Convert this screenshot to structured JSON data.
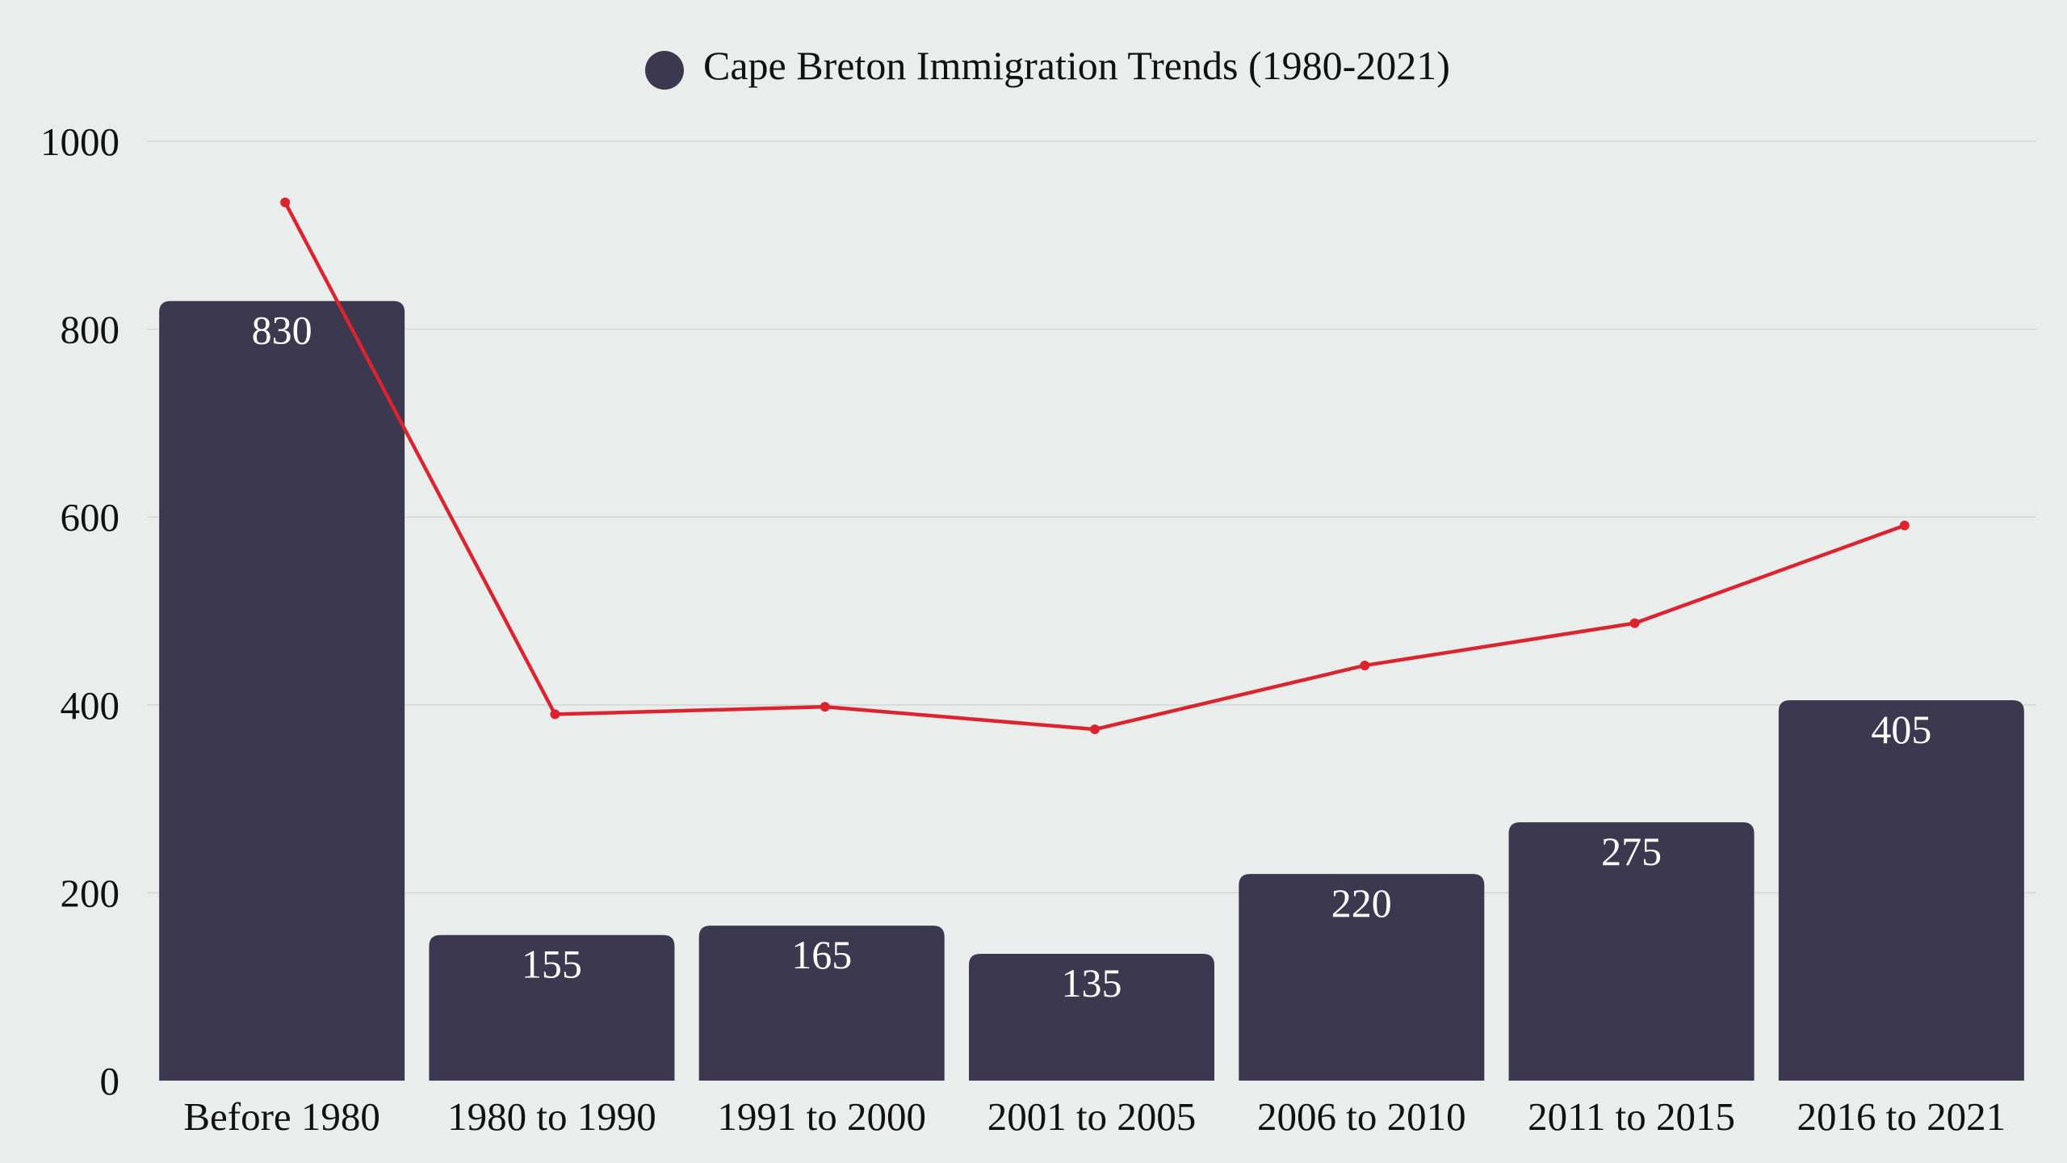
{
  "chart_data": {
    "type": "bar",
    "title": "",
    "xlabel": "",
    "ylabel": "",
    "categories": [
      "Before 1980",
      "1980 to 1990",
      "1991 to 2000",
      "2001 to 2005",
      "2006 to 2010",
      "2011 to 2015",
      "2016 to 2021"
    ],
    "series": [
      {
        "name": "Cape Breton Immigration Trends (1980-2021)",
        "type": "bar",
        "values": [
          830,
          155,
          165,
          135,
          220,
          275,
          405
        ],
        "color": "#3c384f",
        "data_labels": [
          "830",
          "155",
          "165",
          "135",
          "220",
          "275",
          "405"
        ]
      },
      {
        "type": "line",
        "values": [
          935,
          390,
          398,
          374,
          442,
          487,
          591
        ],
        "color": "#dc2330"
      }
    ],
    "ylim": [
      0,
      1000
    ],
    "yticks": [
      0,
      200,
      400,
      600,
      800,
      1000
    ],
    "ytick_labels": [
      "0",
      "200",
      "400",
      "600",
      "800",
      "1000"
    ],
    "grid": true,
    "legend_position": "top-center"
  },
  "colors": {
    "background": "#e9eeec",
    "bar": "#3c384f",
    "line": "#dc2330",
    "grid": "#d3d8d6"
  }
}
